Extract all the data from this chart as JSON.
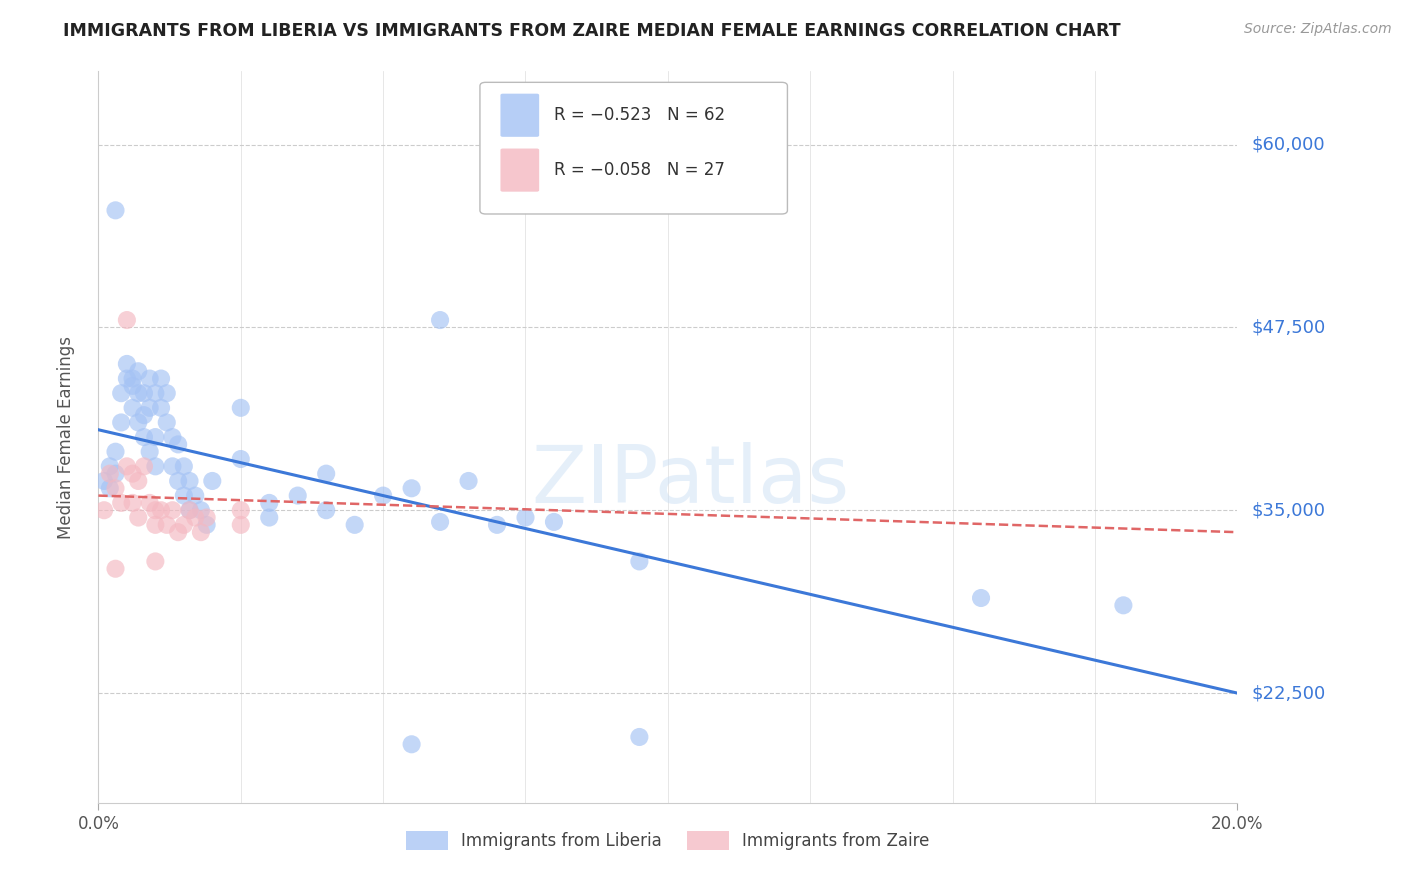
{
  "title": "IMMIGRANTS FROM LIBERIA VS IMMIGRANTS FROM ZAIRE MEDIAN FEMALE EARNINGS CORRELATION CHART",
  "source": "Source: ZipAtlas.com",
  "ylabel": "Median Female Earnings",
  "y_tick_labels": [
    "$22,500",
    "$35,000",
    "$47,500",
    "$60,000"
  ],
  "y_tick_values": [
    22500,
    35000,
    47500,
    60000
  ],
  "y_min": 15000,
  "y_max": 65000,
  "x_min": 0.0,
  "x_max": 0.2,
  "watermark": "ZIPatlas",
  "legend_entries": [
    {
      "label": "R = −0.523   N = 62",
      "color": "#a4c2f4"
    },
    {
      "label": "R = −0.058   N = 27",
      "color": "#f4b8c1"
    }
  ],
  "legend_label_liberia": "Immigrants from Liberia",
  "legend_label_zaire": "Immigrants from Zaire",
  "color_liberia": "#a4c2f4",
  "color_zaire": "#f4b8c1",
  "line_color_liberia": "#3c78d8",
  "line_color_zaire": "#e06666",
  "title_color": "#1a1a1a",
  "right_axis_color": "#3c78d8",
  "liberia_points": [
    [
      0.001,
      37000
    ],
    [
      0.002,
      36500
    ],
    [
      0.002,
      38000
    ],
    [
      0.003,
      37500
    ],
    [
      0.003,
      39000
    ],
    [
      0.004,
      41000
    ],
    [
      0.004,
      43000
    ],
    [
      0.005,
      44000
    ],
    [
      0.005,
      45000
    ],
    [
      0.006,
      44000
    ],
    [
      0.006,
      42000
    ],
    [
      0.006,
      43500
    ],
    [
      0.007,
      43000
    ],
    [
      0.007,
      41000
    ],
    [
      0.007,
      44500
    ],
    [
      0.008,
      43000
    ],
    [
      0.008,
      41500
    ],
    [
      0.008,
      40000
    ],
    [
      0.009,
      42000
    ],
    [
      0.009,
      44000
    ],
    [
      0.009,
      39000
    ],
    [
      0.01,
      43000
    ],
    [
      0.01,
      40000
    ],
    [
      0.01,
      38000
    ],
    [
      0.011,
      44000
    ],
    [
      0.011,
      42000
    ],
    [
      0.012,
      43000
    ],
    [
      0.012,
      41000
    ],
    [
      0.013,
      40000
    ],
    [
      0.013,
      38000
    ],
    [
      0.014,
      39500
    ],
    [
      0.014,
      37000
    ],
    [
      0.015,
      38000
    ],
    [
      0.015,
      36000
    ],
    [
      0.016,
      37000
    ],
    [
      0.016,
      35000
    ],
    [
      0.017,
      36000
    ],
    [
      0.018,
      35000
    ],
    [
      0.019,
      34000
    ],
    [
      0.02,
      37000
    ],
    [
      0.025,
      42000
    ],
    [
      0.025,
      38500
    ],
    [
      0.03,
      35500
    ],
    [
      0.03,
      34500
    ],
    [
      0.035,
      36000
    ],
    [
      0.04,
      37500
    ],
    [
      0.04,
      35000
    ],
    [
      0.045,
      34000
    ],
    [
      0.05,
      36000
    ],
    [
      0.055,
      36500
    ],
    [
      0.06,
      34200
    ],
    [
      0.065,
      37000
    ],
    [
      0.07,
      34000
    ],
    [
      0.075,
      34500
    ],
    [
      0.08,
      34200
    ],
    [
      0.003,
      55500
    ],
    [
      0.06,
      48000
    ],
    [
      0.155,
      29000
    ],
    [
      0.18,
      28500
    ],
    [
      0.095,
      31500
    ],
    [
      0.095,
      19500
    ],
    [
      0.055,
      19000
    ]
  ],
  "zaire_points": [
    [
      0.001,
      35000
    ],
    [
      0.002,
      37500
    ],
    [
      0.003,
      36500
    ],
    [
      0.004,
      35500
    ],
    [
      0.005,
      38000
    ],
    [
      0.006,
      37500
    ],
    [
      0.006,
      35500
    ],
    [
      0.007,
      37000
    ],
    [
      0.007,
      34500
    ],
    [
      0.008,
      38000
    ],
    [
      0.009,
      35500
    ],
    [
      0.01,
      35000
    ],
    [
      0.01,
      34000
    ],
    [
      0.011,
      35000
    ],
    [
      0.012,
      34000
    ],
    [
      0.013,
      35000
    ],
    [
      0.014,
      33500
    ],
    [
      0.015,
      34000
    ],
    [
      0.016,
      35000
    ],
    [
      0.017,
      34500
    ],
    [
      0.018,
      33500
    ],
    [
      0.019,
      34500
    ],
    [
      0.005,
      48000
    ],
    [
      0.01,
      31500
    ],
    [
      0.025,
      34000
    ],
    [
      0.025,
      35000
    ],
    [
      0.003,
      31000
    ]
  ],
  "liberia_line_x": [
    0.0,
    0.2
  ],
  "liberia_line_y": [
    40500,
    22500
  ],
  "zaire_line_x": [
    0.0,
    0.2
  ],
  "zaire_line_y": [
    36000,
    33500
  ],
  "x_minor_ticks": [
    0.025,
    0.05,
    0.075,
    0.1,
    0.125,
    0.15,
    0.175
  ]
}
